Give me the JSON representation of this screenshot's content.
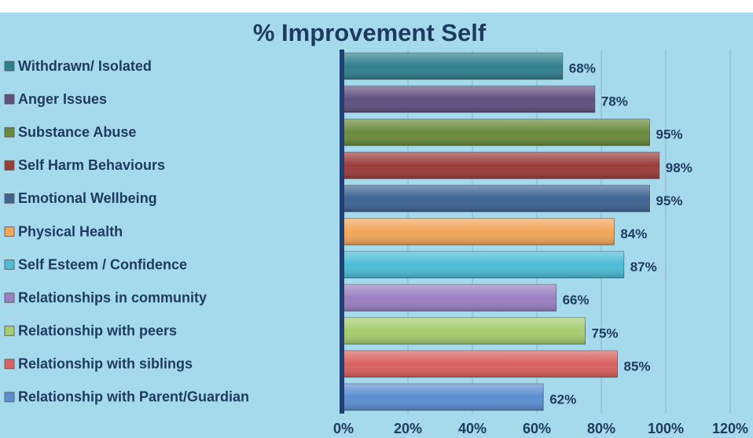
{
  "chart_data": {
    "type": "bar",
    "orientation": "horizontal",
    "title": "% Improvement Self",
    "categories": [
      "Withdrawn/ Isolated",
      "Anger Issues",
      "Substance Abuse",
      "Self Harm Behaviours",
      "Emotional Wellbeing",
      "Physical Health",
      "Self Esteem / Confidence",
      "Relationships in community",
      "Relationship with peers",
      "Relationship with siblings",
      "Relationship with Parent/Guardian"
    ],
    "values": [
      68,
      78,
      95,
      98,
      95,
      84,
      87,
      66,
      75,
      85,
      62
    ],
    "value_labels": [
      "68%",
      "78%",
      "95%",
      "98%",
      "95%",
      "84%",
      "87%",
      "66%",
      "75%",
      "85%",
      "62%"
    ],
    "colors": [
      "#2f7f8d",
      "#5f5080",
      "#6a8a3b",
      "#9c3c3b",
      "#3f6492",
      "#f2a65a",
      "#4cbcd6",
      "#9a80c0",
      "#a5cc6f",
      "#d9615f",
      "#5b8ed1"
    ],
    "xlim": [
      0,
      120
    ],
    "xticks": [
      {
        "value": 0,
        "label": "0%"
      },
      {
        "value": 20,
        "label": "20%"
      },
      {
        "value": 40,
        "label": "40%"
      },
      {
        "value": 60,
        "label": "60%"
      },
      {
        "value": 80,
        "label": "80%"
      },
      {
        "value": 100,
        "label": "100%"
      },
      {
        "value": 120,
        "label": "120%"
      }
    ],
    "grid": true
  }
}
